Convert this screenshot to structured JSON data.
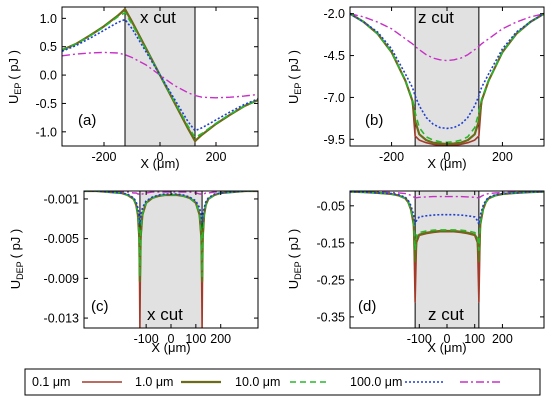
{
  "legend": {
    "entries": [
      {
        "label": "0.1 μm",
        "color": "#a33b2b",
        "dash": ""
      },
      {
        "label": "1.0 μm",
        "color": "#6b6b18",
        "dash": ""
      },
      {
        "label": "10.0 μm",
        "color": "#2bb52b",
        "dash": "6,4"
      },
      {
        "label": "100.0 μm",
        "color": "#1f3fd0",
        "dash": "2,2"
      },
      {
        "label": "",
        "color": "#c730c7",
        "dash": "8,3,2,3"
      }
    ]
  },
  "chart_data": [
    {
      "id": "a",
      "type": "line",
      "panel_label": "(a)",
      "cut_label": "x cut",
      "xlabel": "X (μm)",
      "ylabel": {
        "main": "U",
        "sub": "EP",
        "unit": "( pJ )"
      },
      "xlim": [
        -350,
        350
      ],
      "ylim": [
        -1.25,
        1.2
      ],
      "xticks": [
        -200,
        0,
        200
      ],
      "yticks": [
        1.0,
        0.5,
        0.0,
        -0.5,
        -1.0
      ],
      "ytick_labels": [
        "1.0",
        "0.5",
        "0.0",
        "-0.5",
        "-1.0"
      ],
      "shaded_region": [
        -125,
        125
      ],
      "x": [
        -350,
        -300,
        -250,
        -200,
        -150,
        -125,
        -100,
        -50,
        0,
        50,
        100,
        125,
        150,
        200,
        250,
        300,
        350
      ],
      "series": [
        {
          "name": "0.1 μm",
          "values": [
            0.44,
            0.55,
            0.7,
            0.86,
            1.05,
            1.17,
            0.95,
            0.47,
            0.0,
            -0.47,
            -0.95,
            -1.17,
            -1.05,
            -0.86,
            -0.7,
            -0.55,
            -0.44
          ]
        },
        {
          "name": "1.0 μm",
          "values": [
            0.44,
            0.55,
            0.7,
            0.86,
            1.05,
            1.16,
            0.94,
            0.47,
            0.0,
            -0.47,
            -0.94,
            -1.16,
            -1.05,
            -0.86,
            -0.7,
            -0.55,
            -0.44
          ]
        },
        {
          "name": "10.0 μm",
          "values": [
            0.44,
            0.55,
            0.69,
            0.85,
            1.03,
            1.1,
            0.9,
            0.45,
            0.0,
            -0.45,
            -0.9,
            -1.1,
            -1.03,
            -0.85,
            -0.69,
            -0.55,
            -0.44
          ]
        },
        {
          "name": "100.0 μm",
          "values": [
            0.42,
            0.52,
            0.65,
            0.79,
            0.93,
            0.98,
            0.82,
            0.41,
            0.0,
            -0.41,
            -0.82,
            -0.98,
            -0.93,
            -0.79,
            -0.65,
            -0.52,
            -0.42
          ]
        },
        {
          "name": "",
          "values": [
            0.34,
            0.37,
            0.39,
            0.4,
            0.39,
            0.36,
            0.31,
            0.18,
            0.0,
            -0.18,
            -0.31,
            -0.36,
            -0.39,
            -0.4,
            -0.39,
            -0.37,
            -0.34
          ]
        }
      ]
    },
    {
      "id": "b",
      "type": "line",
      "panel_label": "(b)",
      "cut_label": "z cut",
      "xlabel": "X (μm)",
      "ylabel": {
        "main": "U",
        "sub": "EP",
        "unit": "( pJ )"
      },
      "xlim": [
        -350,
        350
      ],
      "ylim": [
        -9.9,
        -1.6
      ],
      "xticks": [
        -200,
        0,
        200
      ],
      "yticks": [
        -2.0,
        -4.5,
        -7.0,
        -9.5
      ],
      "ytick_labels": [
        "-2.0",
        "-4.5",
        "-7.0",
        "-9.5"
      ],
      "shaded_region": [
        -115,
        115
      ],
      "x": [
        -350,
        -300,
        -250,
        -200,
        -150,
        -125,
        -115,
        -100,
        -75,
        -50,
        -25,
        0,
        25,
        50,
        75,
        100,
        115,
        125,
        150,
        200,
        250,
        300,
        350
      ],
      "series": [
        {
          "name": "0.1 μm",
          "values": [
            -2.0,
            -2.5,
            -3.2,
            -4.3,
            -6.0,
            -7.2,
            -9.3,
            -9.55,
            -9.7,
            -9.8,
            -9.85,
            -9.85,
            -9.85,
            -9.8,
            -9.7,
            -9.55,
            -9.3,
            -7.2,
            -6.0,
            -4.3,
            -3.2,
            -2.5,
            -2.0
          ]
        },
        {
          "name": "1.0 μm",
          "values": [
            -2.0,
            -2.5,
            -3.2,
            -4.3,
            -6.0,
            -7.2,
            -8.4,
            -9.2,
            -9.55,
            -9.7,
            -9.75,
            -9.78,
            -9.75,
            -9.7,
            -9.55,
            -9.2,
            -8.4,
            -7.2,
            -6.0,
            -4.3,
            -3.2,
            -2.5,
            -2.0
          ]
        },
        {
          "name": "10.0 μm",
          "values": [
            -2.0,
            -2.5,
            -3.2,
            -4.3,
            -6.0,
            -7.1,
            -7.9,
            -8.8,
            -9.35,
            -9.55,
            -9.65,
            -9.68,
            -9.65,
            -9.55,
            -9.35,
            -8.8,
            -7.9,
            -7.1,
            -6.0,
            -4.3,
            -3.2,
            -2.5,
            -2.0
          ]
        },
        {
          "name": "100.0 μm",
          "values": [
            -2.0,
            -2.5,
            -3.1,
            -4.1,
            -5.6,
            -6.4,
            -6.9,
            -7.5,
            -8.2,
            -8.6,
            -8.8,
            -8.85,
            -8.8,
            -8.6,
            -8.2,
            -7.5,
            -6.9,
            -6.4,
            -5.6,
            -4.1,
            -3.1,
            -2.5,
            -2.0
          ]
        },
        {
          "name": "",
          "values": [
            -2.0,
            -2.2,
            -2.5,
            -2.9,
            -3.5,
            -3.8,
            -3.95,
            -4.15,
            -4.45,
            -4.65,
            -4.75,
            -4.8,
            -4.75,
            -4.65,
            -4.45,
            -4.15,
            -3.95,
            -3.8,
            -3.5,
            -2.9,
            -2.5,
            -2.2,
            -2.0
          ]
        }
      ]
    },
    {
      "id": "c",
      "type": "line",
      "panel_label": "(c)",
      "cut_label": "x cut",
      "xlabel": "X (μm)",
      "ylabel": {
        "main": "U",
        "sub": "DEP",
        "unit": "( pJ )"
      },
      "xlim": [
        -350,
        350
      ],
      "ylim": [
        -0.014,
        -0.0002
      ],
      "xticks": [
        -100,
        0,
        100,
        200
      ],
      "yticks": [
        -0.001,
        -0.005,
        -0.009,
        -0.013
      ],
      "ytick_labels": [
        "-0.001",
        "-0.005",
        "-0.009",
        "-0.013"
      ],
      "shaded_region": [
        -125,
        125
      ],
      "x": [
        -350,
        -300,
        -250,
        -200,
        -175,
        -150,
        -140,
        -133,
        -128,
        -125,
        -122,
        -115,
        -100,
        -75,
        -50,
        -25,
        0,
        25,
        50,
        75,
        100,
        115,
        122,
        125,
        128,
        133,
        140,
        150,
        175,
        200,
        250,
        300,
        350
      ],
      "series": [
        {
          "name": "0.1 μm",
          "values": [
            -0.0002,
            -0.0002,
            -0.0003,
            -0.0004,
            -0.0006,
            -0.001,
            -0.0016,
            -0.0026,
            -0.005,
            -0.014,
            -0.005,
            -0.0026,
            -0.0014,
            -0.0009,
            -0.0007,
            -0.0006,
            -0.0006,
            -0.0006,
            -0.0007,
            -0.0009,
            -0.0014,
            -0.0026,
            -0.005,
            -0.014,
            -0.005,
            -0.0026,
            -0.0016,
            -0.001,
            -0.0006,
            -0.0004,
            -0.0003,
            -0.0002,
            -0.0002
          ]
        },
        {
          "name": "1.0 μm",
          "values": [
            -0.0002,
            -0.0002,
            -0.0003,
            -0.0004,
            -0.0006,
            -0.001,
            -0.0016,
            -0.0026,
            -0.0048,
            -0.0093,
            -0.0048,
            -0.0026,
            -0.0014,
            -0.0009,
            -0.0007,
            -0.0006,
            -0.0006,
            -0.0006,
            -0.0007,
            -0.0009,
            -0.0014,
            -0.0026,
            -0.0048,
            -0.0093,
            -0.0048,
            -0.0026,
            -0.0016,
            -0.001,
            -0.0006,
            -0.0004,
            -0.0003,
            -0.0002,
            -0.0002
          ]
        },
        {
          "name": "10.0 μm",
          "values": [
            -0.0002,
            -0.0002,
            -0.0003,
            -0.0004,
            -0.0006,
            -0.001,
            -0.0016,
            -0.0025,
            -0.0045,
            -0.0088,
            -0.0045,
            -0.0025,
            -0.0014,
            -0.0009,
            -0.0007,
            -0.0006,
            -0.0006,
            -0.0006,
            -0.0007,
            -0.0009,
            -0.0014,
            -0.0025,
            -0.0045,
            -0.0088,
            -0.0045,
            -0.0025,
            -0.0016,
            -0.001,
            -0.0006,
            -0.0004,
            -0.0003,
            -0.0002,
            -0.0002
          ]
        },
        {
          "name": "100.0 μm",
          "values": [
            -0.0002,
            -0.0002,
            -0.0003,
            -0.0004,
            -0.0005,
            -0.0009,
            -0.0013,
            -0.0019,
            -0.0028,
            -0.0035,
            -0.0028,
            -0.0019,
            -0.0012,
            -0.0008,
            -0.0006,
            -0.0005,
            -0.0005,
            -0.0005,
            -0.0006,
            -0.0008,
            -0.0012,
            -0.0019,
            -0.0028,
            -0.0035,
            -0.0028,
            -0.0019,
            -0.0013,
            -0.0009,
            -0.0005,
            -0.0004,
            -0.0003,
            -0.0002,
            -0.0002
          ]
        },
        {
          "name": "",
          "values": [
            -0.0002,
            -0.0002,
            -0.0002,
            -0.0003,
            -0.0003,
            -0.0004,
            -0.0004,
            -0.0005,
            -0.0005,
            -0.0006,
            -0.0005,
            -0.0005,
            -0.0004,
            -0.0003,
            -0.0003,
            -0.0003,
            -0.0003,
            -0.0003,
            -0.0003,
            -0.0003,
            -0.0004,
            -0.0005,
            -0.0005,
            -0.0006,
            -0.0005,
            -0.0005,
            -0.0004,
            -0.0004,
            -0.0003,
            -0.0003,
            -0.0002,
            -0.0002,
            -0.0002
          ]
        }
      ]
    },
    {
      "id": "d",
      "type": "line",
      "panel_label": "(d)",
      "cut_label": "z cut",
      "xlabel": "X (μm)",
      "ylabel": {
        "main": "U",
        "sub": "DEP",
        "unit": "( pJ )"
      },
      "xlim": [
        -350,
        350
      ],
      "ylim": [
        -0.38,
        -0.01
      ],
      "xticks": [
        -100,
        0,
        100,
        200
      ],
      "yticks": [
        -0.05,
        -0.15,
        -0.25,
        -0.35
      ],
      "ytick_labels": [
        "-0.05",
        "-0.15",
        "-0.25",
        "-0.35"
      ],
      "shaded_region": [
        -115,
        115
      ],
      "x": [
        -350,
        -300,
        -250,
        -200,
        -175,
        -150,
        -140,
        -130,
        -120,
        -115,
        -110,
        -100,
        -75,
        -50,
        -25,
        0,
        25,
        50,
        75,
        100,
        110,
        115,
        120,
        130,
        140,
        150,
        175,
        200,
        250,
        300,
        350
      ],
      "series": [
        {
          "name": "0.1 μm",
          "values": [
            -0.012,
            -0.013,
            -0.015,
            -0.018,
            -0.022,
            -0.03,
            -0.04,
            -0.06,
            -0.1,
            -0.31,
            -0.15,
            -0.13,
            -0.125,
            -0.122,
            -0.12,
            -0.12,
            -0.12,
            -0.122,
            -0.125,
            -0.13,
            -0.15,
            -0.31,
            -0.1,
            -0.06,
            -0.04,
            -0.03,
            -0.022,
            -0.018,
            -0.015,
            -0.013,
            -0.012
          ]
        },
        {
          "name": "1.0 μm",
          "values": [
            -0.012,
            -0.013,
            -0.015,
            -0.018,
            -0.022,
            -0.03,
            -0.04,
            -0.06,
            -0.1,
            -0.2,
            -0.14,
            -0.128,
            -0.123,
            -0.12,
            -0.118,
            -0.118,
            -0.118,
            -0.12,
            -0.123,
            -0.128,
            -0.14,
            -0.2,
            -0.1,
            -0.06,
            -0.04,
            -0.03,
            -0.022,
            -0.018,
            -0.015,
            -0.013,
            -0.012
          ]
        },
        {
          "name": "10.0 μm",
          "values": [
            -0.012,
            -0.013,
            -0.015,
            -0.018,
            -0.022,
            -0.03,
            -0.04,
            -0.058,
            -0.095,
            -0.17,
            -0.13,
            -0.122,
            -0.118,
            -0.116,
            -0.115,
            -0.115,
            -0.115,
            -0.116,
            -0.118,
            -0.122,
            -0.13,
            -0.17,
            -0.095,
            -0.058,
            -0.04,
            -0.03,
            -0.022,
            -0.018,
            -0.015,
            -0.013,
            -0.012
          ]
        },
        {
          "name": "100.0 μm",
          "values": [
            -0.012,
            -0.013,
            -0.015,
            -0.017,
            -0.02,
            -0.027,
            -0.035,
            -0.05,
            -0.075,
            -0.1,
            -0.09,
            -0.08,
            -0.077,
            -0.075,
            -0.074,
            -0.074,
            -0.074,
            -0.075,
            -0.077,
            -0.08,
            -0.09,
            -0.1,
            -0.075,
            -0.05,
            -0.035,
            -0.027,
            -0.02,
            -0.017,
            -0.015,
            -0.013,
            -0.012
          ]
        },
        {
          "name": "",
          "values": [
            -0.012,
            -0.012,
            -0.013,
            -0.014,
            -0.015,
            -0.017,
            -0.019,
            -0.022,
            -0.026,
            -0.029,
            -0.028,
            -0.027,
            -0.026,
            -0.025,
            -0.025,
            -0.025,
            -0.025,
            -0.025,
            -0.026,
            -0.027,
            -0.028,
            -0.029,
            -0.026,
            -0.022,
            -0.019,
            -0.017,
            -0.015,
            -0.014,
            -0.013,
            -0.012,
            -0.012
          ]
        }
      ]
    }
  ]
}
